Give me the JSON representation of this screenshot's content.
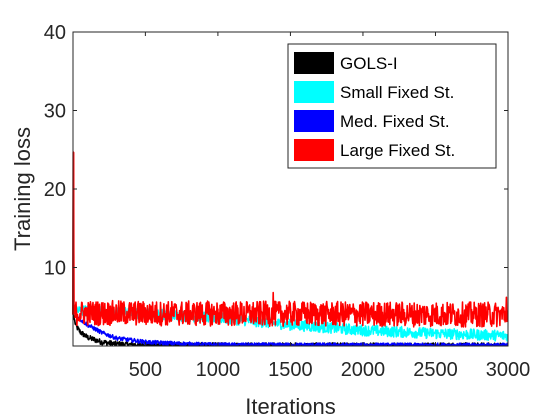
{
  "chart_data": {
    "type": "line",
    "title": "",
    "xlabel": "Iterations",
    "ylabel": "Training loss",
    "xlim": [
      1,
      3000
    ],
    "ylim": [
      0,
      40
    ],
    "xticks": [
      500,
      1000,
      1500,
      2000,
      2500,
      3000
    ],
    "yticks": [
      10,
      20,
      30,
      40
    ],
    "grid": false,
    "legend_position": "top-right",
    "series": [
      {
        "name": "GOLS-I",
        "color": "#000000",
        "description": "noisy",
        "x": [
          1,
          2,
          5,
          20,
          50,
          100,
          200,
          300,
          500,
          1000,
          3000
        ],
        "y": [
          5.2,
          4.5,
          3.8,
          2.6,
          1.8,
          1.1,
          0.5,
          0.25,
          0.1,
          0.05,
          0.05
        ],
        "noise": 0.35
      },
      {
        "name": "Small Fixed St.",
        "color": "#00ffff",
        "x": [
          1,
          3,
          10,
          50,
          100,
          500,
          1000,
          1500,
          2000,
          2500,
          3000
        ],
        "y": [
          5.8,
          5.0,
          4.6,
          4.5,
          4.5,
          4.1,
          3.6,
          2.7,
          2.0,
          1.6,
          1.3
        ],
        "noise": 0.7
      },
      {
        "name": "Med. Fixed St.",
        "color": "#0000ff",
        "x": [
          1,
          3,
          10,
          50,
          100,
          200,
          300,
          500,
          800,
          1000,
          3000
        ],
        "y": [
          5.0,
          4.6,
          4.2,
          3.4,
          2.7,
          1.7,
          1.0,
          0.5,
          0.25,
          0.15,
          0.1
        ],
        "noise": 0.25
      },
      {
        "name": "Large Fixed St.",
        "color": "#ff0000",
        "x": [
          1,
          4,
          6,
          10,
          3000
        ],
        "y": [
          4.0,
          24.7,
          4.8,
          4.2,
          4.0
        ],
        "noise": 1.6,
        "spikes": [
          [
            1380,
            6.8
          ],
          [
            2990,
            6.2
          ]
        ]
      }
    ]
  }
}
